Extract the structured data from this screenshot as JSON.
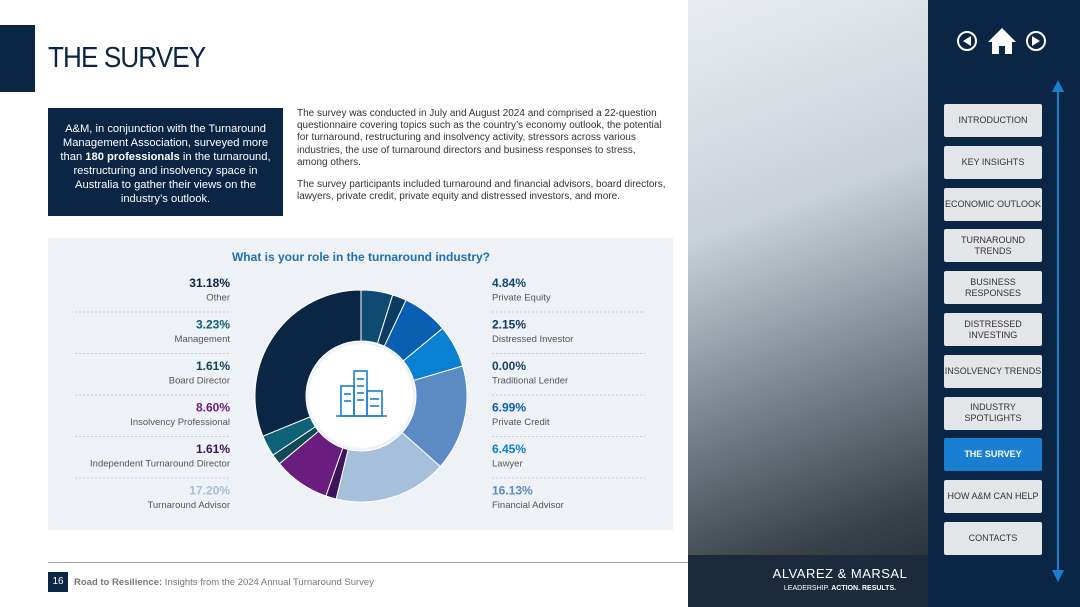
{
  "header": {
    "title": "THE SURVEY"
  },
  "intro_box": {
    "before": "A&M, in conjunction with the Turnaround Management Association, surveyed more than ",
    "bold": "180 professionals",
    "after": " in the turnaround, restructuring and insolvency space in Australia to gather their views on the industry’s outlook."
  },
  "paragraphs": [
    "The survey was conducted in July and August 2024 and comprised a 22-question questionnaire covering topics such as the country’s economy outlook, the potential for turnaround, restructuring and insolvency activity, stressors across various industries, the use of turnaround directors and business responses to stress, among others.",
    "The survey participants included turnaround and financial advisors, board directors, lawyers, private credit, private equity and distressed investors, and more."
  ],
  "chart_data": {
    "type": "donut",
    "title": "What is your role in the turnaround industry?",
    "categories": [
      "Private Equity",
      "Distressed Investor",
      "Traditional Lender",
      "Private Credit",
      "Lawyer",
      "Financial Advisor",
      "Turnaround Advisor",
      "Independent Turnaround Director",
      "Insolvency Professional",
      "Board Director",
      "Management",
      "Other"
    ],
    "values": [
      4.84,
      2.15,
      0,
      6.99,
      6.45,
      16.13,
      17.2,
      1.61,
      8.6,
      1.61,
      3.23,
      31.18
    ],
    "value_labels": [
      "4.84%",
      "2.15%",
      "0.00%",
      "6.99%",
      "6.45%",
      "16.13%",
      "17.20%",
      "1.61%",
      "8.60%",
      "1.61%",
      "3.23%",
      "31.18%"
    ],
    "colors": [
      "#0f4a72",
      "#0c3b63",
      "#1b3f6b",
      "#0b5fb3",
      "#0a80d2",
      "#5b8bc2",
      "#a6bfdb",
      "#3d145e",
      "#6b1d7f",
      "#0f4a59",
      "#0e6176",
      "#0b2545"
    ]
  },
  "nav": {
    "items": [
      [
        "INTRODUCTION"
      ],
      [
        "KEY INSIGHTS"
      ],
      [
        "ECONOMIC OUTLOOK"
      ],
      [
        "TURNAROUND",
        "TRENDS"
      ],
      [
        "BUSINESS",
        "RESPONSES"
      ],
      [
        "DISTRESSED",
        "INVESTING"
      ],
      [
        "INSOLVENCY TRENDS"
      ],
      [
        "INDUSTRY",
        "SPOTLIGHTS"
      ],
      [
        "THE SURVEY"
      ],
      [
        "HOW A&M CAN HELP"
      ],
      [
        "CONTACTS"
      ]
    ],
    "active": 8
  },
  "footer": {
    "page": "16",
    "bold": "Road to Resilience:",
    "text": " Insights from the 2024 Annual Turnaround Survey",
    "logo": "ALVAREZ & MARSAL",
    "tagline_a": "LEADERSHIP. ",
    "tagline_b": "ACTION. RESULTS."
  }
}
